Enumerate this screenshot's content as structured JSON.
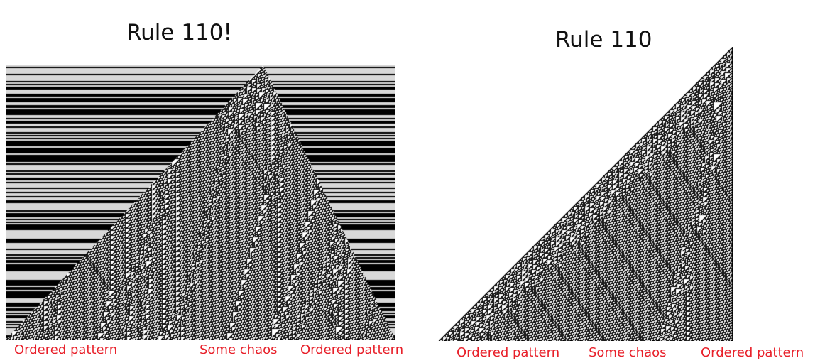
{
  "left_figure": {
    "title": "Rule 110!",
    "captions": [
      "Ordered pattern",
      "Some chaos",
      "Ordered pattern"
    ]
  },
  "right_figure": {
    "title": "Rule 110",
    "captions": [
      "Ordered pattern",
      "Some chaos",
      "Ordered pattern"
    ]
  },
  "colors": {
    "caption": "#e8202a",
    "cell_on": "#000000",
    "cell_off": "#ffffff"
  },
  "automaton": {
    "rule": 110
  }
}
